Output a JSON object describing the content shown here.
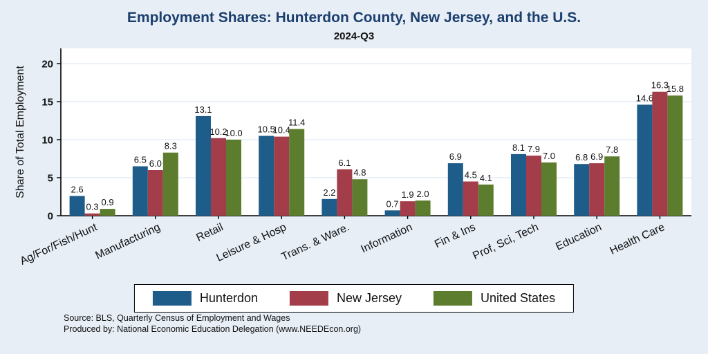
{
  "title": "Employment Shares: Hunterdon County, New Jersey, and the U.S.",
  "subtitle": "2024-Q3",
  "ylabel": "Share of Total Employment",
  "source": {
    "line1": "Source: BLS, Quarterly Census of Employment and Wages",
    "line2": "Produced by: National Economic Education Delegation (www.NEEDEcon.org)"
  },
  "colors": {
    "background": "#e7eef6",
    "plot_background": "#ffffff",
    "gridline": "#d9e3ef",
    "axis": "#000000",
    "title": "#1c3f6e",
    "hunterdon": "#1e5c8a",
    "new_jersey": "#a23d49",
    "united_states": "#5d7d2e"
  },
  "chart_data": {
    "type": "bar",
    "title": "Employment Shares: Hunterdon County, New Jersey, and the U.S.",
    "subtitle": "2024-Q3",
    "xlabel": "",
    "ylabel": "Share of Total Employment",
    "ylim": [
      0,
      20
    ],
    "yticks": [
      0,
      5,
      10,
      15,
      20
    ],
    "grid": true,
    "legend_position": "bottom",
    "categories": [
      "Ag/For/Fish/Hunt",
      "Manufacturing",
      "Retail",
      "Leisure & Hosp",
      "Trans. & Ware.",
      "Information",
      "Fin & Ins",
      "Prof, Sci, Tech",
      "Education",
      "Health Care"
    ],
    "series": [
      {
        "name": "Hunterdon",
        "color": "#1e5c8a",
        "values": [
          2.6,
          6.5,
          13.1,
          10.5,
          2.2,
          0.7,
          6.9,
          8.1,
          6.8,
          14.6
        ]
      },
      {
        "name": "New Jersey",
        "color": "#a23d49",
        "values": [
          0.3,
          6.0,
          10.2,
          10.4,
          6.1,
          1.9,
          4.5,
          7.9,
          6.9,
          16.3
        ]
      },
      {
        "name": "United States",
        "color": "#5d7d2e",
        "values": [
          0.9,
          8.3,
          10.0,
          11.4,
          4.8,
          2.0,
          4.1,
          7.0,
          7.8,
          15.8
        ]
      }
    ]
  }
}
